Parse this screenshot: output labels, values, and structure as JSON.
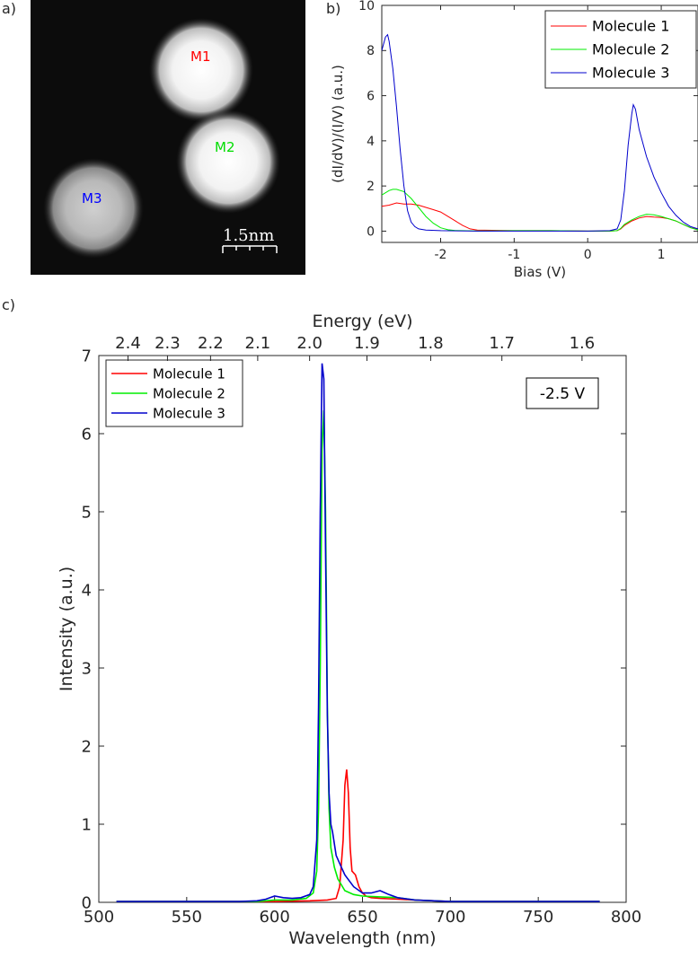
{
  "panels": {
    "a": "a)",
    "b": "b)",
    "c": "c)"
  },
  "stm_image": {
    "scale_bar_label": "1.5nm",
    "molecules": [
      {
        "label": "M1",
        "color": "#ff0000"
      },
      {
        "label": "M2",
        "color": "#00ee00"
      },
      {
        "label": "M3",
        "color": "#0000ff"
      }
    ]
  },
  "chart_data": [
    {
      "type": "line",
      "panel": "b",
      "xlabel": "Bias (V)",
      "ylabel": "(dI/dV)/(I/V) (a.u.)",
      "xlim": [
        -2.8,
        1.5
      ],
      "ylim": [
        -0.5,
        10
      ],
      "xticks": [
        -2,
        -1,
        0,
        1
      ],
      "yticks": [
        0,
        2,
        4,
        6,
        8,
        10
      ],
      "legend": "top-right",
      "series": [
        {
          "name": "Molecule 1",
          "color": "#ff0000",
          "x": [
            -2.8,
            -2.7,
            -2.6,
            -2.5,
            -2.4,
            -2.3,
            -2.2,
            -2.1,
            -2.0,
            -1.9,
            -1.8,
            -1.7,
            -1.6,
            -1.5,
            -1.0,
            -0.5,
            0.0,
            0.3,
            0.4,
            0.45,
            0.5,
            0.6,
            0.7,
            0.8,
            0.9,
            1.0,
            1.1,
            1.2,
            1.3,
            1.4,
            1.5
          ],
          "y": [
            1.1,
            1.15,
            1.25,
            1.2,
            1.2,
            1.15,
            1.05,
            0.95,
            0.85,
            0.65,
            0.45,
            0.25,
            0.1,
            0.05,
            0.02,
            0.02,
            0.0,
            0.0,
            0.02,
            0.1,
            0.25,
            0.45,
            0.58,
            0.65,
            0.62,
            0.6,
            0.55,
            0.45,
            0.3,
            0.15,
            0.08
          ]
        },
        {
          "name": "Molecule 2",
          "color": "#00ee00",
          "x": [
            -2.8,
            -2.7,
            -2.65,
            -2.6,
            -2.5,
            -2.4,
            -2.3,
            -2.2,
            -2.1,
            -2.0,
            -1.9,
            -1.8,
            -1.7,
            -1.5,
            -1.0,
            -0.5,
            0.0,
            0.3,
            0.4,
            0.45,
            0.5,
            0.6,
            0.7,
            0.8,
            0.9,
            1.0,
            1.1,
            1.2,
            1.3,
            1.4,
            1.5
          ],
          "y": [
            1.6,
            1.8,
            1.85,
            1.85,
            1.75,
            1.45,
            1.05,
            0.65,
            0.35,
            0.15,
            0.06,
            0.03,
            0.02,
            0.01,
            0.02,
            0.02,
            0.0,
            0.0,
            0.02,
            0.12,
            0.3,
            0.5,
            0.65,
            0.75,
            0.72,
            0.65,
            0.55,
            0.45,
            0.3,
            0.15,
            0.05
          ]
        },
        {
          "name": "Molecule 3",
          "color": "#0000cc",
          "x": [
            -2.8,
            -2.75,
            -2.72,
            -2.7,
            -2.65,
            -2.6,
            -2.55,
            -2.5,
            -2.45,
            -2.4,
            -2.35,
            -2.3,
            -2.2,
            -2.0,
            -1.5,
            -1.0,
            -0.5,
            0.0,
            0.3,
            0.4,
            0.45,
            0.5,
            0.55,
            0.6,
            0.62,
            0.65,
            0.7,
            0.8,
            0.9,
            1.0,
            1.1,
            1.2,
            1.3,
            1.4,
            1.5
          ],
          "y": [
            8.0,
            8.6,
            8.7,
            8.4,
            7.2,
            5.5,
            3.6,
            2.0,
            0.9,
            0.4,
            0.2,
            0.1,
            0.05,
            0.02,
            0.0,
            0.0,
            0.0,
            0.0,
            0.02,
            0.1,
            0.5,
            1.8,
            3.8,
            5.2,
            5.6,
            5.4,
            4.5,
            3.3,
            2.4,
            1.7,
            1.1,
            0.7,
            0.4,
            0.2,
            0.1
          ]
        }
      ]
    },
    {
      "type": "line",
      "panel": "c",
      "xlabel": "Wavelength (nm)",
      "ylabel": "Intensity (a.u.)",
      "top_xlabel": "Energy (eV)",
      "top_ticks": [
        "2.4",
        "2.3",
        "2.2",
        "2.1",
        "2.0",
        "1.9",
        "1.8",
        "1.7",
        "1.6"
      ],
      "annotation": "-2.5 V",
      "xlim": [
        500,
        800
      ],
      "ylim": [
        0,
        7
      ],
      "xticks": [
        500,
        550,
        600,
        650,
        700,
        750,
        800
      ],
      "yticks": [
        0,
        1,
        2,
        3,
        4,
        5,
        6,
        7
      ],
      "legend": "top-left",
      "series": [
        {
          "name": "Molecule 1",
          "color": "#ff0000",
          "x": [
            510,
            600,
            620,
            630,
            635,
            637,
            639,
            640,
            641,
            642,
            643,
            644,
            646,
            648,
            650,
            652,
            655,
            660,
            670,
            680,
            700,
            785
          ],
          "y": [
            0.01,
            0.01,
            0.02,
            0.03,
            0.05,
            0.2,
            0.8,
            1.5,
            1.7,
            1.4,
            0.7,
            0.4,
            0.35,
            0.2,
            0.12,
            0.08,
            0.06,
            0.05,
            0.04,
            0.03,
            0.01,
            0.01
          ]
        },
        {
          "name": "Molecule 2",
          "color": "#00ee00",
          "x": [
            510,
            590,
            600,
            610,
            618,
            622,
            624,
            625,
            626,
            627,
            628,
            629,
            630,
            631,
            632,
            634,
            636,
            640,
            645,
            650,
            660,
            670,
            680,
            700,
            785
          ],
          "y": [
            0.01,
            0.01,
            0.03,
            0.03,
            0.05,
            0.12,
            0.4,
            1.2,
            3.0,
            5.8,
            6.3,
            5.0,
            2.5,
            1.2,
            0.7,
            0.45,
            0.3,
            0.15,
            0.1,
            0.08,
            0.07,
            0.06,
            0.03,
            0.01,
            0.01
          ]
        },
        {
          "name": "Molecule 3",
          "color": "#0000cc",
          "x": [
            510,
            580,
            590,
            595,
            600,
            605,
            610,
            615,
            620,
            622,
            624,
            625,
            626,
            627,
            628,
            629,
            630,
            631,
            632,
            633,
            635,
            638,
            640,
            645,
            650,
            655,
            660,
            665,
            670,
            680,
            700,
            785
          ],
          "y": [
            0.01,
            0.01,
            0.02,
            0.04,
            0.08,
            0.06,
            0.05,
            0.06,
            0.1,
            0.2,
            0.8,
            2.5,
            5.0,
            6.9,
            6.7,
            4.5,
            2.4,
            1.4,
            1.0,
            0.9,
            0.6,
            0.45,
            0.35,
            0.2,
            0.12,
            0.12,
            0.15,
            0.1,
            0.06,
            0.03,
            0.01,
            0.01
          ]
        }
      ]
    }
  ]
}
